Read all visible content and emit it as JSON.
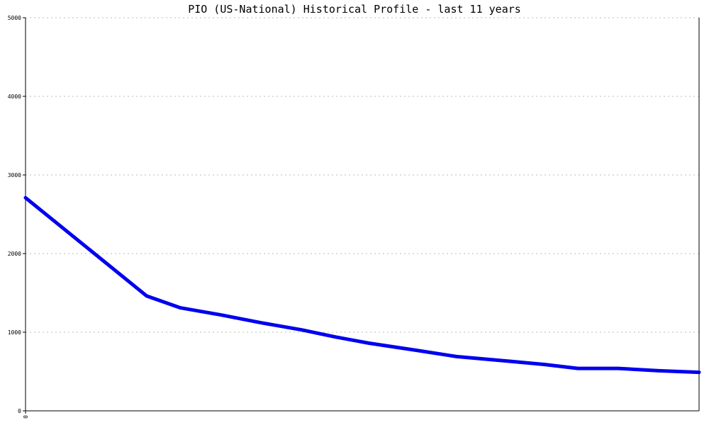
{
  "chart_data": {
    "type": "line",
    "title": "PIO (US-National) Historical Profile - last 11 years",
    "xlabel": "",
    "ylabel": "",
    "ylim": [
      0,
      5000
    ],
    "yticks": [
      0,
      1000,
      2000,
      3000,
      4000,
      5000
    ],
    "xticks": [
      {
        "value": 0,
        "label": "0"
      }
    ],
    "grid": true,
    "colors": {
      "line": "#0000ee",
      "grid": "#bbbbbb",
      "axis": "#000000"
    },
    "series": [
      {
        "x": [
          0,
          0.18,
          0.23,
          0.29,
          0.35,
          0.41,
          0.46,
          0.51,
          0.58,
          0.64,
          0.72,
          0.77,
          0.82,
          0.88,
          0.94,
          1.0
        ],
        "values": [
          2710,
          1460,
          1310,
          1220,
          1120,
          1030,
          940,
          860,
          770,
          690,
          630,
          590,
          540,
          540,
          510,
          490
        ]
      }
    ]
  }
}
